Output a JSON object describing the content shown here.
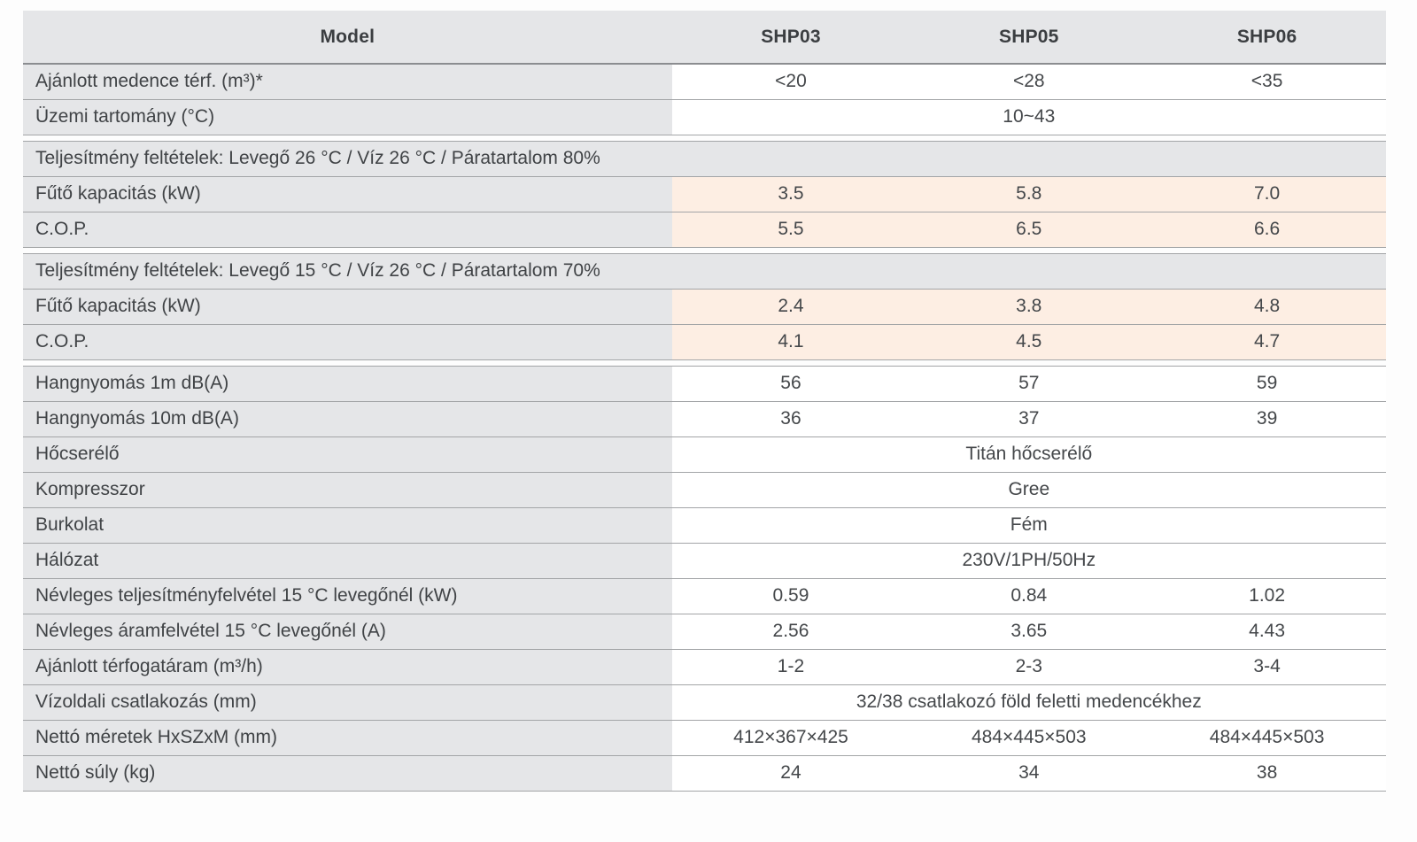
{
  "table": {
    "header": {
      "model_label": "Model",
      "columns": [
        "SHP03",
        "SHP05",
        "SHP06"
      ]
    },
    "rows": [
      {
        "type": "data",
        "label": "Ajánlott medence térf. (m³)*",
        "values": [
          "<20",
          "<28",
          "<35"
        ]
      },
      {
        "type": "span",
        "label": "Üzemi tartomány (°C)",
        "value": "10~43"
      },
      {
        "type": "gap"
      },
      {
        "type": "section",
        "label": "Teljesítmény feltételek: Levegő 26 °C / Víz 26 °C / Páratartalom 80%"
      },
      {
        "type": "data",
        "highlight": true,
        "label": "Fűtő kapacitás (kW)",
        "values": [
          "3.5",
          "5.8",
          "7.0"
        ]
      },
      {
        "type": "data",
        "highlight": true,
        "label": "C.O.P.",
        "values": [
          "5.5",
          "6.5",
          "6.6"
        ]
      },
      {
        "type": "gap"
      },
      {
        "type": "section",
        "label": "Teljesítmény feltételek: Levegő 15 °C / Víz 26 °C / Páratartalom 70%"
      },
      {
        "type": "data",
        "highlight": true,
        "label": "Fűtő kapacitás (kW)",
        "values": [
          "2.4",
          "3.8",
          "4.8"
        ]
      },
      {
        "type": "data",
        "highlight": true,
        "label": "C.O.P.",
        "values": [
          "4.1",
          "4.5",
          "4.7"
        ]
      },
      {
        "type": "gap"
      },
      {
        "type": "data",
        "label": "Hangnyomás 1m dB(A)",
        "values": [
          "56",
          "57",
          "59"
        ]
      },
      {
        "type": "data",
        "label": "Hangnyomás 10m dB(A)",
        "values": [
          "36",
          "37",
          "39"
        ]
      },
      {
        "type": "span",
        "label": "Hőcserélő",
        "value": "Titán hőcserélő"
      },
      {
        "type": "span",
        "label": "Kompresszor",
        "value": "Gree"
      },
      {
        "type": "span",
        "label": "Burkolat",
        "value": "Fém"
      },
      {
        "type": "span",
        "label": "Hálózat",
        "value": "230V/1PH/50Hz"
      },
      {
        "type": "data",
        "label": "Névleges teljesítményfelvétel 15 °C levegőnél (kW)",
        "values": [
          "0.59",
          "0.84",
          "1.02"
        ]
      },
      {
        "type": "data",
        "label": "Névleges áramfelvétel 15 °C levegőnél (A)",
        "values": [
          "2.56",
          "3.65",
          "4.43"
        ]
      },
      {
        "type": "data",
        "label": "Ajánlott térfogatáram (m³/h)",
        "values": [
          "1-2",
          "2-3",
          "3-4"
        ]
      },
      {
        "type": "span",
        "label": "Vízoldali csatlakozás (mm)",
        "value": "32/38 csatlakozó föld feletti medencékhez"
      },
      {
        "type": "data",
        "label": "Nettó méretek HxSZxM (mm)",
        "values": [
          "412×367×425",
          "484×445×503",
          "484×445×503"
        ]
      },
      {
        "type": "data",
        "label": "Nettó súly (kg)",
        "values": [
          "24",
          "34",
          "38"
        ]
      }
    ],
    "colors": {
      "cell_grey": "#e5e6e8",
      "highlight_peach": "#fdeee3",
      "line_grey": "#a3a5a7",
      "header_underline": "#8b8d90",
      "text_dark": "#3b3e41",
      "page_background": "#fdfdfd"
    }
  }
}
